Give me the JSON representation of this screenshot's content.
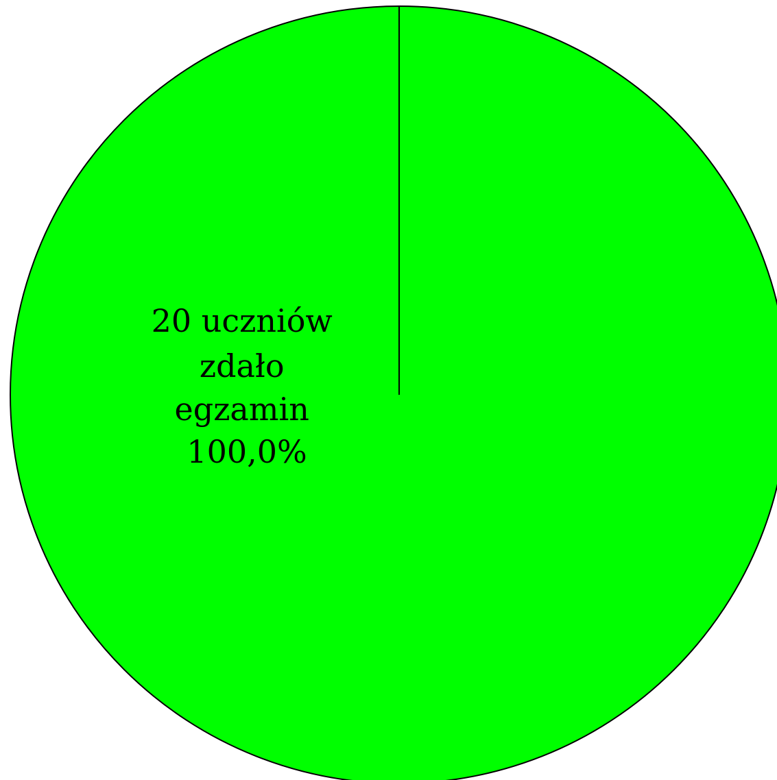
{
  "chart_data": {
    "type": "pie",
    "slices": [
      {
        "value": 20,
        "percent": 100.0,
        "color": "#00ff00",
        "label_lines": [
          "20 uczniów",
          "zdało",
          "egzamin",
          "100,0%"
        ]
      }
    ],
    "edge_color": "#000000"
  }
}
